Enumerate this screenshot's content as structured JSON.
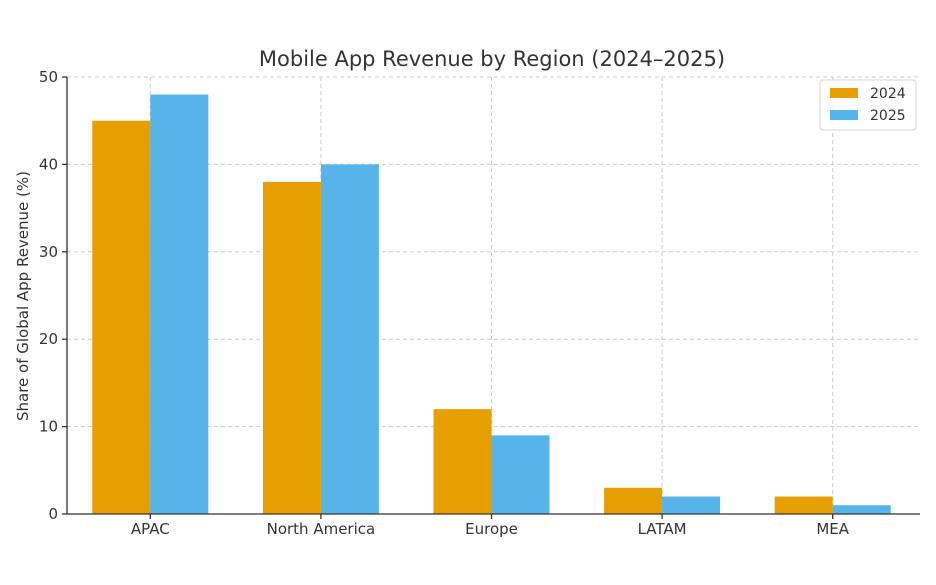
{
  "chart_data": {
    "type": "bar",
    "title": "Mobile App Revenue by Region (2024–2025)",
    "xlabel": "",
    "ylabel": "Share of Global App Revenue (%)",
    "categories": [
      "APAC",
      "North America",
      "Europe",
      "LATAM",
      "MEA"
    ],
    "series": [
      {
        "name": "2024",
        "color": "#E69F00",
        "values": [
          45,
          38,
          12,
          3,
          2
        ]
      },
      {
        "name": "2025",
        "color": "#56B4E9",
        "values": [
          48,
          40,
          9,
          2,
          1
        ]
      }
    ],
    "ylim": [
      0,
      50
    ],
    "yticks": [
      0,
      10,
      20,
      30,
      40,
      50
    ],
    "grid": true,
    "legend_position": "top-right"
  }
}
